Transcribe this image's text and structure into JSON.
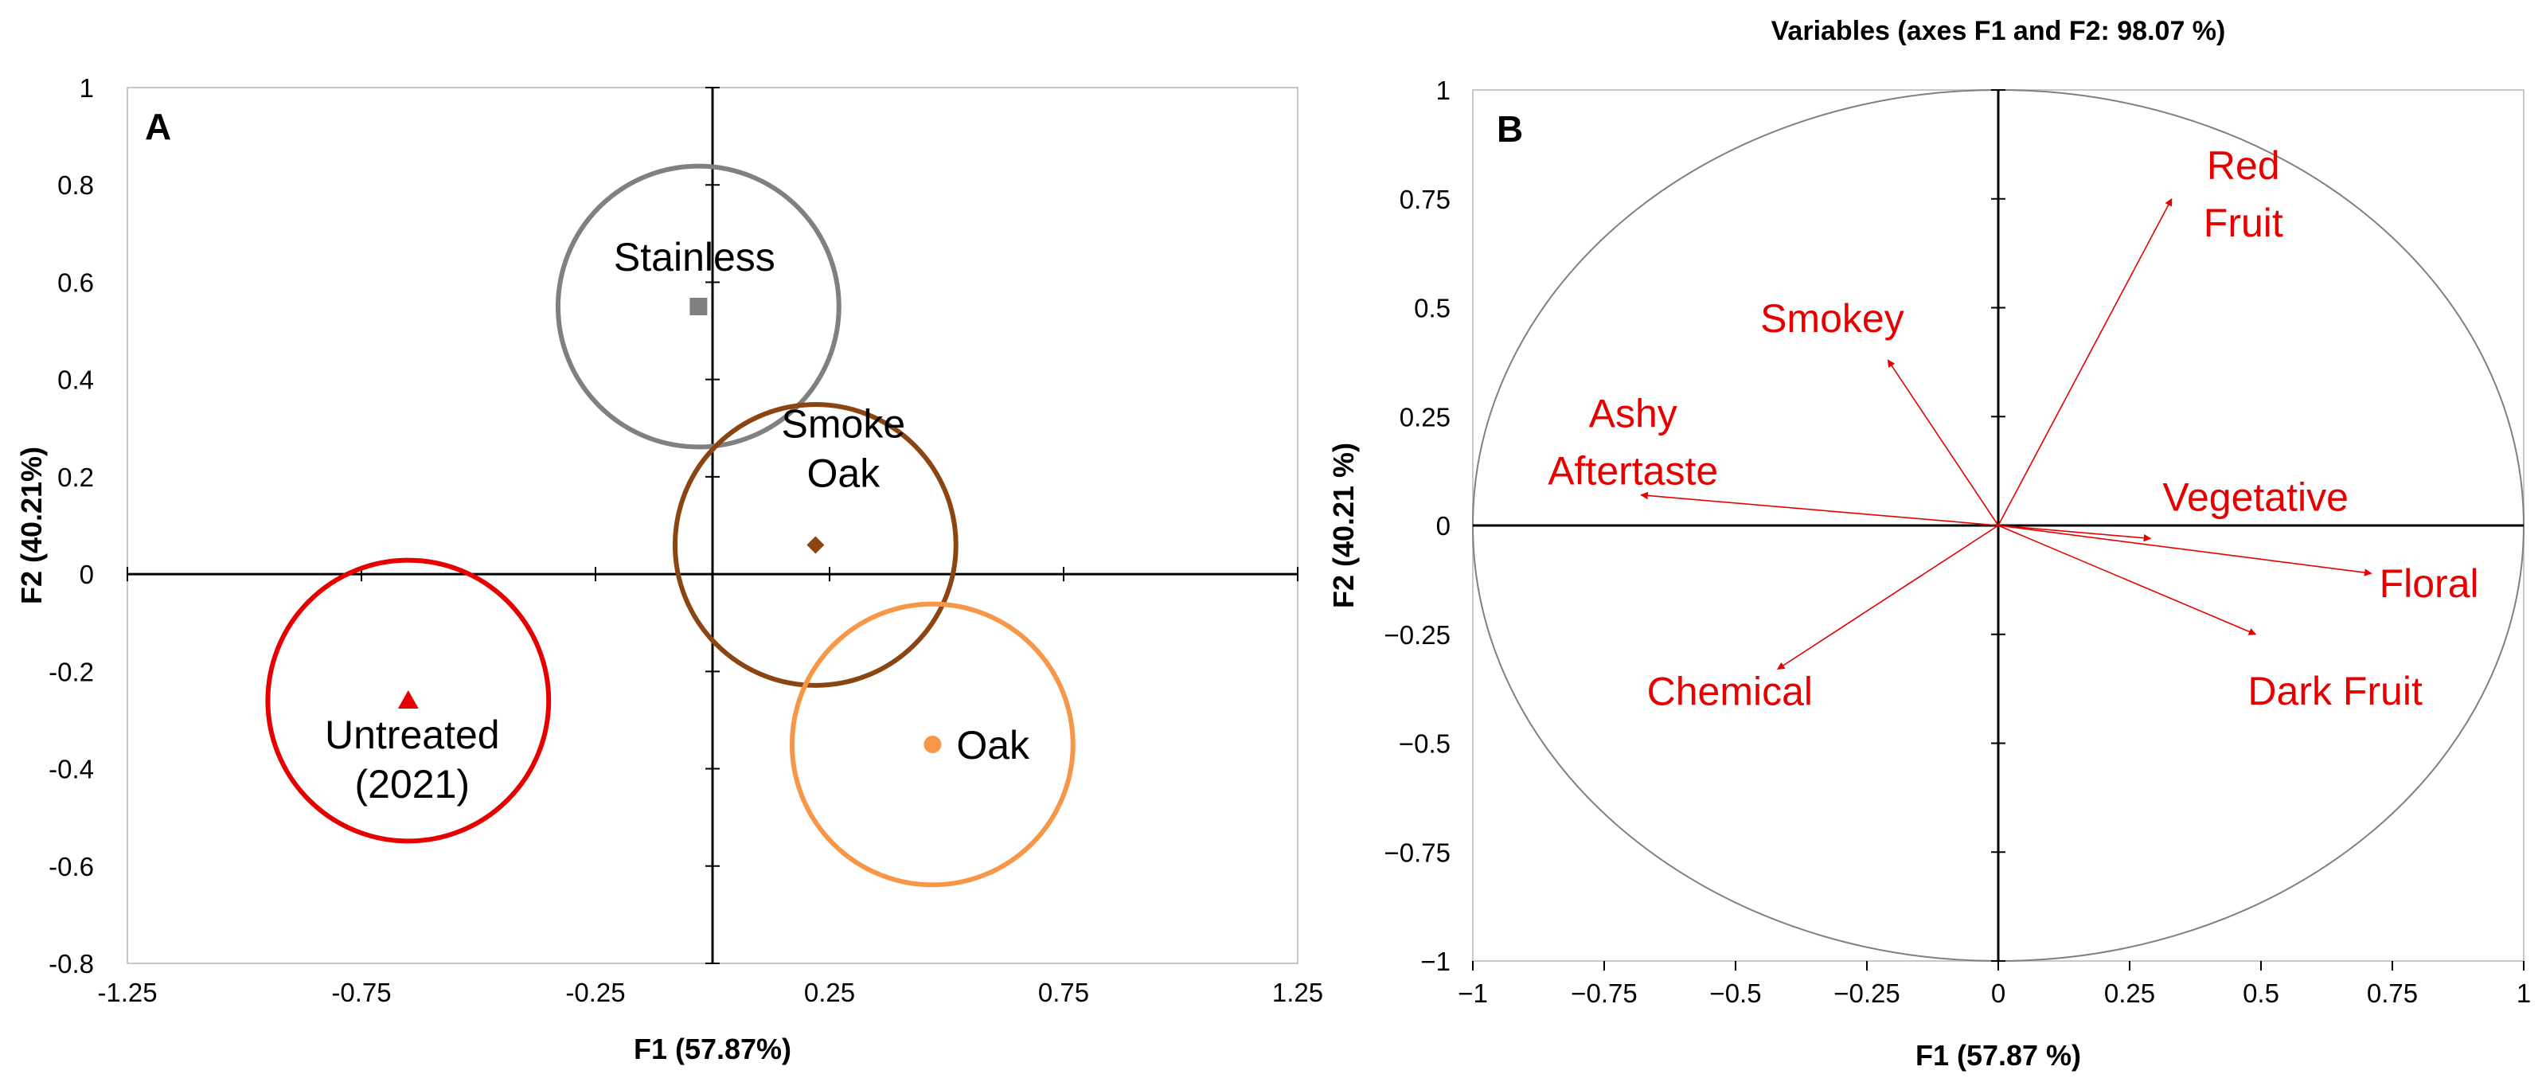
{
  "chart_data": [
    {
      "type": "scatter",
      "panel_label": "A",
      "title": "",
      "xlabel": "F1 (57.87%)",
      "ylabel": "F2 (40.21%)",
      "xlim": [
        -1.25,
        1.25
      ],
      "ylim": [
        -0.8,
        1
      ],
      "xticks": [
        "-1.25",
        "-0.75",
        "-0.25",
        "0.25",
        "0.75",
        "1.25"
      ],
      "yticks": [
        "-0.8",
        "-0.6",
        "-0.4",
        "-0.2",
        "0",
        "0.2",
        "0.4",
        "0.6",
        "0.8",
        "1"
      ],
      "grid": false,
      "points": [
        {
          "label": [
            "Stainless"
          ],
          "x": -0.03,
          "y": 0.55,
          "marker": "square",
          "color": "#808080",
          "circle_radius": 0.3
        },
        {
          "label": [
            "Smoke",
            "Oak"
          ],
          "x": 0.22,
          "y": 0.06,
          "marker": "diamond",
          "color": "#8b4513",
          "circle_radius": 0.3
        },
        {
          "label": [
            "Untreated",
            "(2021)"
          ],
          "x": -0.65,
          "y": -0.26,
          "marker": "triangle",
          "color": "#e60000",
          "circle_radius": 0.3
        },
        {
          "label": [
            "Oak"
          ],
          "x": 0.47,
          "y": -0.35,
          "marker": "circle",
          "color": "#f79646",
          "circle_radius": 0.3
        }
      ]
    },
    {
      "type": "scatter",
      "panel_label": "B",
      "title": "Variables (axes F1 and F2: 98.07 %)",
      "xlabel": "F1 (57.87 %)",
      "ylabel": "F2 (40.21 %)",
      "xlim": [
        -1,
        1
      ],
      "ylim": [
        -1,
        1
      ],
      "xticks": [
        "−1",
        "−0.75",
        "−0.5",
        "−0.25",
        "0",
        "0.25",
        "0.5",
        "0.75",
        "1"
      ],
      "yticks": [
        "−1",
        "−0.75",
        "−0.5",
        "−0.25",
        "0",
        "0.25",
        "0.5",
        "0.75",
        "1"
      ],
      "grid": false,
      "correlation_circle": true,
      "vectors": [
        {
          "label": [
            "Red",
            "Fruit"
          ],
          "x": 0.33,
          "y": 0.75,
          "color": "#e60000"
        },
        {
          "label": [
            "Smokey"
          ],
          "x": -0.21,
          "y": 0.38,
          "color": "#e60000"
        },
        {
          "label": [
            "Ashy",
            "Aftertaste"
          ],
          "x": -0.68,
          "y": 0.07,
          "color": "#e60000"
        },
        {
          "label": [
            "Vegetative"
          ],
          "x": 0.29,
          "y": -0.03,
          "color": "#e60000"
        },
        {
          "label": [
            "Floral"
          ],
          "x": 0.71,
          "y": -0.11,
          "color": "#e60000"
        },
        {
          "label": [
            "Dark Fruit"
          ],
          "x": 0.49,
          "y": -0.25,
          "color": "#e60000"
        },
        {
          "label": [
            "Chemical"
          ],
          "x": -0.42,
          "y": -0.33,
          "color": "#e60000"
        }
      ]
    }
  ]
}
